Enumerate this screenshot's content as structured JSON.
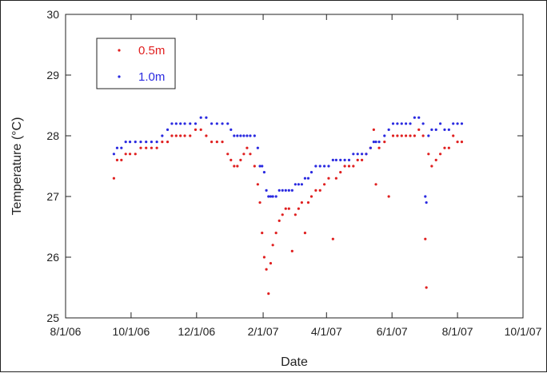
{
  "chart_data": {
    "type": "scatter",
    "title": "",
    "xlabel": "Date",
    "ylabel": "Temperature (°C)",
    "xlim": [
      "2006-08-01",
      "2007-10-01"
    ],
    "ylim": [
      25,
      30
    ],
    "x_ticks": [
      "8/1/06",
      "10/1/06",
      "12/1/06",
      "2/1/07",
      "4/1/07",
      "6/1/07",
      "8/1/07",
      "10/1/07"
    ],
    "y_ticks": [
      "25",
      "26",
      "27",
      "28",
      "29",
      "30"
    ],
    "grid": false,
    "legend": {
      "placement": "top-left"
    },
    "series": [
      {
        "name": "0.5m",
        "color": "#e02020",
        "points": [
          [
            "2006-09-15",
            27.3
          ],
          [
            "2006-09-18",
            27.6
          ],
          [
            "2006-09-22",
            27.6
          ],
          [
            "2006-09-26",
            27.7
          ],
          [
            "2006-09-30",
            27.7
          ],
          [
            "2006-10-05",
            27.7
          ],
          [
            "2006-10-10",
            27.8
          ],
          [
            "2006-10-15",
            27.8
          ],
          [
            "2006-10-20",
            27.8
          ],
          [
            "2006-10-25",
            27.8
          ],
          [
            "2006-10-30",
            27.9
          ],
          [
            "2006-11-04",
            27.9
          ],
          [
            "2006-11-08",
            28.0
          ],
          [
            "2006-11-12",
            28.0
          ],
          [
            "2006-11-16",
            28.0
          ],
          [
            "2006-11-20",
            28.0
          ],
          [
            "2006-11-25",
            28.0
          ],
          [
            "2006-11-30",
            28.1
          ],
          [
            "2006-12-05",
            28.1
          ],
          [
            "2006-12-10",
            28.0
          ],
          [
            "2006-12-15",
            27.9
          ],
          [
            "2006-12-20",
            27.9
          ],
          [
            "2006-12-25",
            27.9
          ],
          [
            "2006-12-30",
            27.7
          ],
          [
            "2007-01-02",
            27.6
          ],
          [
            "2007-01-05",
            27.5
          ],
          [
            "2007-01-08",
            27.5
          ],
          [
            "2007-01-11",
            27.6
          ],
          [
            "2007-01-14",
            27.7
          ],
          [
            "2007-01-17",
            27.8
          ],
          [
            "2007-01-20",
            27.7
          ],
          [
            "2007-01-24",
            27.5
          ],
          [
            "2007-01-27",
            27.2
          ],
          [
            "2007-01-29",
            26.9
          ],
          [
            "2007-01-31",
            26.4
          ],
          [
            "2007-02-02",
            26.0
          ],
          [
            "2007-02-04",
            25.8
          ],
          [
            "2007-02-06",
            25.4
          ],
          [
            "2007-02-08",
            25.9
          ],
          [
            "2007-02-10",
            26.2
          ],
          [
            "2007-02-13",
            26.4
          ],
          [
            "2007-02-16",
            26.6
          ],
          [
            "2007-02-19",
            26.7
          ],
          [
            "2007-02-22",
            26.8
          ],
          [
            "2007-02-25",
            26.8
          ],
          [
            "2007-02-28",
            26.1
          ],
          [
            "2007-03-03",
            26.7
          ],
          [
            "2007-03-06",
            26.8
          ],
          [
            "2007-03-09",
            26.9
          ],
          [
            "2007-03-12",
            26.4
          ],
          [
            "2007-03-15",
            26.9
          ],
          [
            "2007-03-18",
            27.0
          ],
          [
            "2007-03-22",
            27.1
          ],
          [
            "2007-03-26",
            27.1
          ],
          [
            "2007-03-30",
            27.2
          ],
          [
            "2007-04-03",
            27.3
          ],
          [
            "2007-04-07",
            26.3
          ],
          [
            "2007-04-10",
            27.3
          ],
          [
            "2007-04-14",
            27.4
          ],
          [
            "2007-04-18",
            27.5
          ],
          [
            "2007-04-22",
            27.5
          ],
          [
            "2007-04-26",
            27.5
          ],
          [
            "2007-04-30",
            27.6
          ],
          [
            "2007-05-04",
            27.6
          ],
          [
            "2007-05-08",
            27.7
          ],
          [
            "2007-05-12",
            27.8
          ],
          [
            "2007-05-15",
            28.1
          ],
          [
            "2007-05-17",
            27.2
          ],
          [
            "2007-05-20",
            27.8
          ],
          [
            "2007-05-25",
            27.9
          ],
          [
            "2007-05-29",
            27.0
          ],
          [
            "2007-06-02",
            28.0
          ],
          [
            "2007-06-06",
            28.0
          ],
          [
            "2007-06-10",
            28.0
          ],
          [
            "2007-06-14",
            28.0
          ],
          [
            "2007-06-18",
            28.0
          ],
          [
            "2007-06-22",
            28.0
          ],
          [
            "2007-06-26",
            28.1
          ],
          [
            "2007-06-30",
            28.0
          ],
          [
            "2007-07-02",
            26.3
          ],
          [
            "2007-07-03",
            25.5
          ],
          [
            "2007-07-05",
            27.7
          ],
          [
            "2007-07-08",
            27.5
          ],
          [
            "2007-07-12",
            27.6
          ],
          [
            "2007-07-16",
            27.7
          ],
          [
            "2007-07-20",
            27.8
          ],
          [
            "2007-07-24",
            27.8
          ],
          [
            "2007-07-28",
            28.0
          ],
          [
            "2007-08-01",
            27.9
          ],
          [
            "2007-08-05",
            27.9
          ]
        ]
      },
      {
        "name": "1.0m",
        "color": "#2a2ae0",
        "points": [
          [
            "2006-09-15",
            27.7
          ],
          [
            "2006-09-18",
            27.8
          ],
          [
            "2006-09-22",
            27.8
          ],
          [
            "2006-09-26",
            27.9
          ],
          [
            "2006-09-30",
            27.9
          ],
          [
            "2006-10-05",
            27.9
          ],
          [
            "2006-10-10",
            27.9
          ],
          [
            "2006-10-15",
            27.9
          ],
          [
            "2006-10-20",
            27.9
          ],
          [
            "2006-10-25",
            27.9
          ],
          [
            "2006-10-30",
            28.0
          ],
          [
            "2006-11-04",
            28.1
          ],
          [
            "2006-11-08",
            28.2
          ],
          [
            "2006-11-12",
            28.2
          ],
          [
            "2006-11-16",
            28.2
          ],
          [
            "2006-11-20",
            28.2
          ],
          [
            "2006-11-25",
            28.2
          ],
          [
            "2006-11-30",
            28.2
          ],
          [
            "2006-12-05",
            28.3
          ],
          [
            "2006-12-10",
            28.3
          ],
          [
            "2006-12-15",
            28.2
          ],
          [
            "2006-12-20",
            28.2
          ],
          [
            "2006-12-25",
            28.2
          ],
          [
            "2006-12-30",
            28.2
          ],
          [
            "2007-01-02",
            28.1
          ],
          [
            "2007-01-05",
            28.0
          ],
          [
            "2007-01-08",
            28.0
          ],
          [
            "2007-01-11",
            28.0
          ],
          [
            "2007-01-14",
            28.0
          ],
          [
            "2007-01-17",
            28.0
          ],
          [
            "2007-01-20",
            28.0
          ],
          [
            "2007-01-24",
            28.0
          ],
          [
            "2007-01-27",
            27.8
          ],
          [
            "2007-01-29",
            27.5
          ],
          [
            "2007-01-31",
            27.5
          ],
          [
            "2007-02-02",
            27.4
          ],
          [
            "2007-02-04",
            27.1
          ],
          [
            "2007-02-06",
            27.0
          ],
          [
            "2007-02-08",
            27.0
          ],
          [
            "2007-02-10",
            27.0
          ],
          [
            "2007-02-13",
            27.0
          ],
          [
            "2007-02-16",
            27.1
          ],
          [
            "2007-02-19",
            27.1
          ],
          [
            "2007-02-22",
            27.1
          ],
          [
            "2007-02-25",
            27.1
          ],
          [
            "2007-02-28",
            27.1
          ],
          [
            "2007-03-03",
            27.2
          ],
          [
            "2007-03-06",
            27.2
          ],
          [
            "2007-03-09",
            27.2
          ],
          [
            "2007-03-12",
            27.3
          ],
          [
            "2007-03-15",
            27.3
          ],
          [
            "2007-03-18",
            27.4
          ],
          [
            "2007-03-22",
            27.5
          ],
          [
            "2007-03-26",
            27.5
          ],
          [
            "2007-03-30",
            27.5
          ],
          [
            "2007-04-03",
            27.5
          ],
          [
            "2007-04-07",
            27.6
          ],
          [
            "2007-04-10",
            27.6
          ],
          [
            "2007-04-14",
            27.6
          ],
          [
            "2007-04-18",
            27.6
          ],
          [
            "2007-04-22",
            27.6
          ],
          [
            "2007-04-26",
            27.7
          ],
          [
            "2007-04-30",
            27.7
          ],
          [
            "2007-05-04",
            27.7
          ],
          [
            "2007-05-08",
            27.7
          ],
          [
            "2007-05-12",
            27.8
          ],
          [
            "2007-05-15",
            27.9
          ],
          [
            "2007-05-17",
            27.9
          ],
          [
            "2007-05-20",
            27.9
          ],
          [
            "2007-05-25",
            28.0
          ],
          [
            "2007-05-29",
            28.1
          ],
          [
            "2007-06-02",
            28.2
          ],
          [
            "2007-06-06",
            28.2
          ],
          [
            "2007-06-10",
            28.2
          ],
          [
            "2007-06-14",
            28.2
          ],
          [
            "2007-06-18",
            28.2
          ],
          [
            "2007-06-22",
            28.3
          ],
          [
            "2007-06-26",
            28.3
          ],
          [
            "2007-06-30",
            28.2
          ],
          [
            "2007-07-02",
            27.0
          ],
          [
            "2007-07-03",
            26.9
          ],
          [
            "2007-07-05",
            28.0
          ],
          [
            "2007-07-08",
            28.1
          ],
          [
            "2007-07-12",
            28.1
          ],
          [
            "2007-07-16",
            28.2
          ],
          [
            "2007-07-20",
            28.1
          ],
          [
            "2007-07-24",
            28.1
          ],
          [
            "2007-07-28",
            28.2
          ],
          [
            "2007-08-01",
            28.2
          ],
          [
            "2007-08-05",
            28.2
          ]
        ]
      }
    ]
  }
}
